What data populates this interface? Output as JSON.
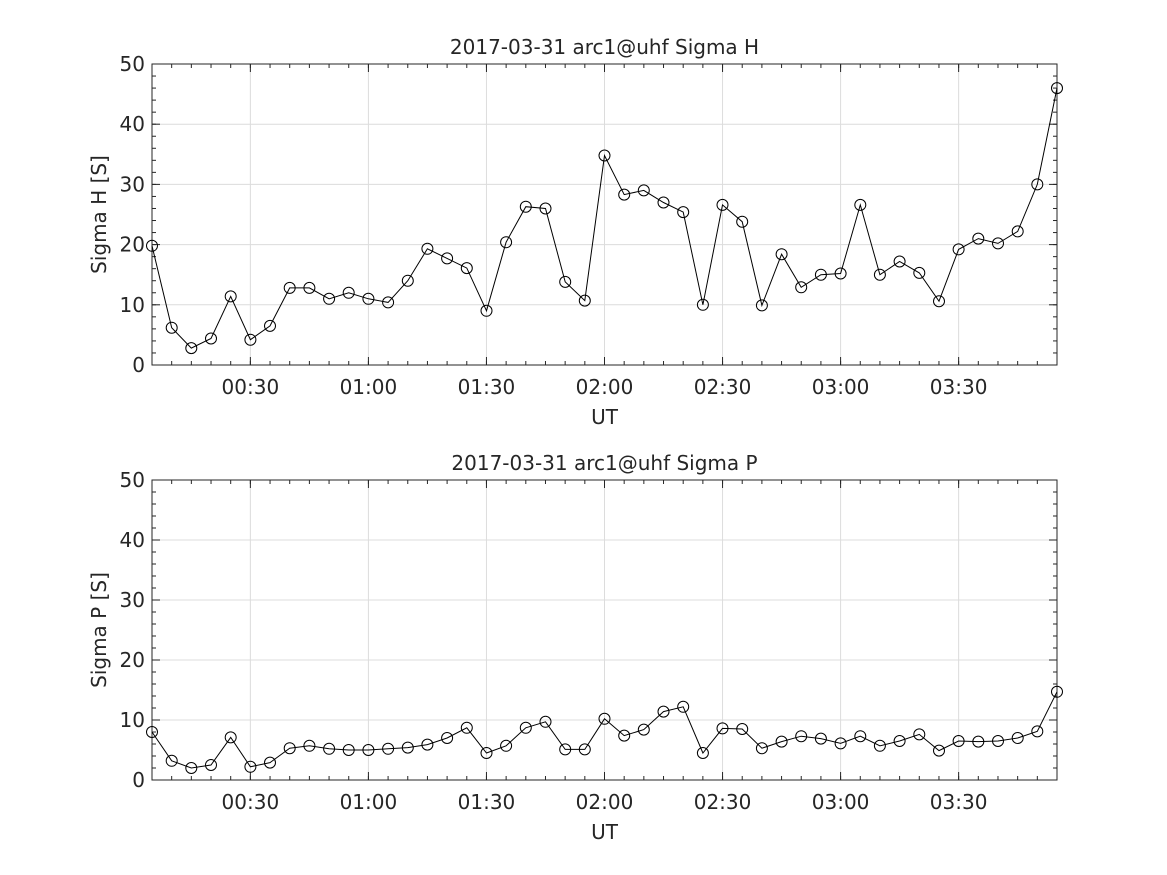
{
  "chart_data": [
    {
      "type": "line",
      "title": "2017-03-31  arc1@uhf Sigma H",
      "xlabel": "UT",
      "ylabel": "Sigma H [S]",
      "ylim": [
        0,
        50
      ],
      "xlim": [
        "00:05",
        "03:55"
      ],
      "yticks": [
        "0",
        "10",
        "20",
        "30",
        "40",
        "50"
      ],
      "xticks": [
        "00:30",
        "01:00",
        "01:30",
        "02:00",
        "02:30",
        "03:00",
        "03:30"
      ],
      "grid": true,
      "marker": "open-circle",
      "x": [
        "00:05",
        "00:10",
        "00:15",
        "00:20",
        "00:25",
        "00:30",
        "00:35",
        "00:40",
        "00:45",
        "00:50",
        "00:55",
        "01:00",
        "01:05",
        "01:10",
        "01:15",
        "01:20",
        "01:25",
        "01:30",
        "01:35",
        "01:40",
        "01:45",
        "01:50",
        "01:55",
        "02:00",
        "02:05",
        "02:10",
        "02:15",
        "02:20",
        "02:25",
        "02:30",
        "02:35",
        "02:40",
        "02:45",
        "02:50",
        "02:55",
        "03:00",
        "03:05",
        "03:10",
        "03:15",
        "03:20",
        "03:25",
        "03:30",
        "03:35",
        "03:40",
        "03:45",
        "03:50",
        "03:55"
      ],
      "values": [
        19.8,
        6.2,
        2.8,
        4.4,
        11.4,
        4.2,
        6.5,
        12.8,
        12.8,
        11.0,
        12.0,
        11.0,
        10.4,
        14.0,
        19.3,
        17.7,
        16.1,
        9.0,
        20.4,
        26.3,
        26.0,
        13.8,
        10.7,
        34.8,
        28.3,
        29.0,
        27.0,
        25.4,
        10.0,
        26.6,
        23.8,
        9.9,
        18.4,
        12.9,
        15.0,
        15.2,
        26.6,
        15.0,
        17.2,
        15.3,
        10.6,
        19.2,
        21.0,
        20.2,
        22.2,
        30.0,
        46.0
      ]
    },
    {
      "type": "line",
      "title": "2017-03-31  arc1@uhf Sigma P",
      "xlabel": "UT",
      "ylabel": "Sigma P [S]",
      "ylim": [
        0,
        50
      ],
      "xlim": [
        "00:05",
        "03:55"
      ],
      "yticks": [
        "0",
        "10",
        "20",
        "30",
        "40",
        "50"
      ],
      "xticks": [
        "00:30",
        "01:00",
        "01:30",
        "02:00",
        "02:30",
        "03:00",
        "03:30"
      ],
      "grid": true,
      "marker": "open-circle",
      "x": [
        "00:05",
        "00:10",
        "00:15",
        "00:20",
        "00:25",
        "00:30",
        "00:35",
        "00:40",
        "00:45",
        "00:50",
        "00:55",
        "01:00",
        "01:05",
        "01:10",
        "01:15",
        "01:20",
        "01:25",
        "01:30",
        "01:35",
        "01:40",
        "01:45",
        "01:50",
        "01:55",
        "02:00",
        "02:05",
        "02:10",
        "02:15",
        "02:20",
        "02:25",
        "02:30",
        "02:35",
        "02:40",
        "02:45",
        "02:50",
        "02:55",
        "03:00",
        "03:05",
        "03:10",
        "03:15",
        "03:20",
        "03:25",
        "03:30",
        "03:35",
        "03:40",
        "03:45",
        "03:50",
        "03:55"
      ],
      "values": [
        8.0,
        3.2,
        2.0,
        2.5,
        7.1,
        2.2,
        2.9,
        5.3,
        5.7,
        5.2,
        5.0,
        5.0,
        5.2,
        5.4,
        5.9,
        7.0,
        8.7,
        4.5,
        5.7,
        8.7,
        9.7,
        5.1,
        5.1,
        10.2,
        7.4,
        8.4,
        11.4,
        12.2,
        4.5,
        8.6,
        8.5,
        5.3,
        6.4,
        7.3,
        6.9,
        6.1,
        7.3,
        5.7,
        6.5,
        7.6,
        4.9,
        6.5,
        6.4,
        6.5,
        7.0,
        8.1,
        14.7
      ]
    }
  ]
}
